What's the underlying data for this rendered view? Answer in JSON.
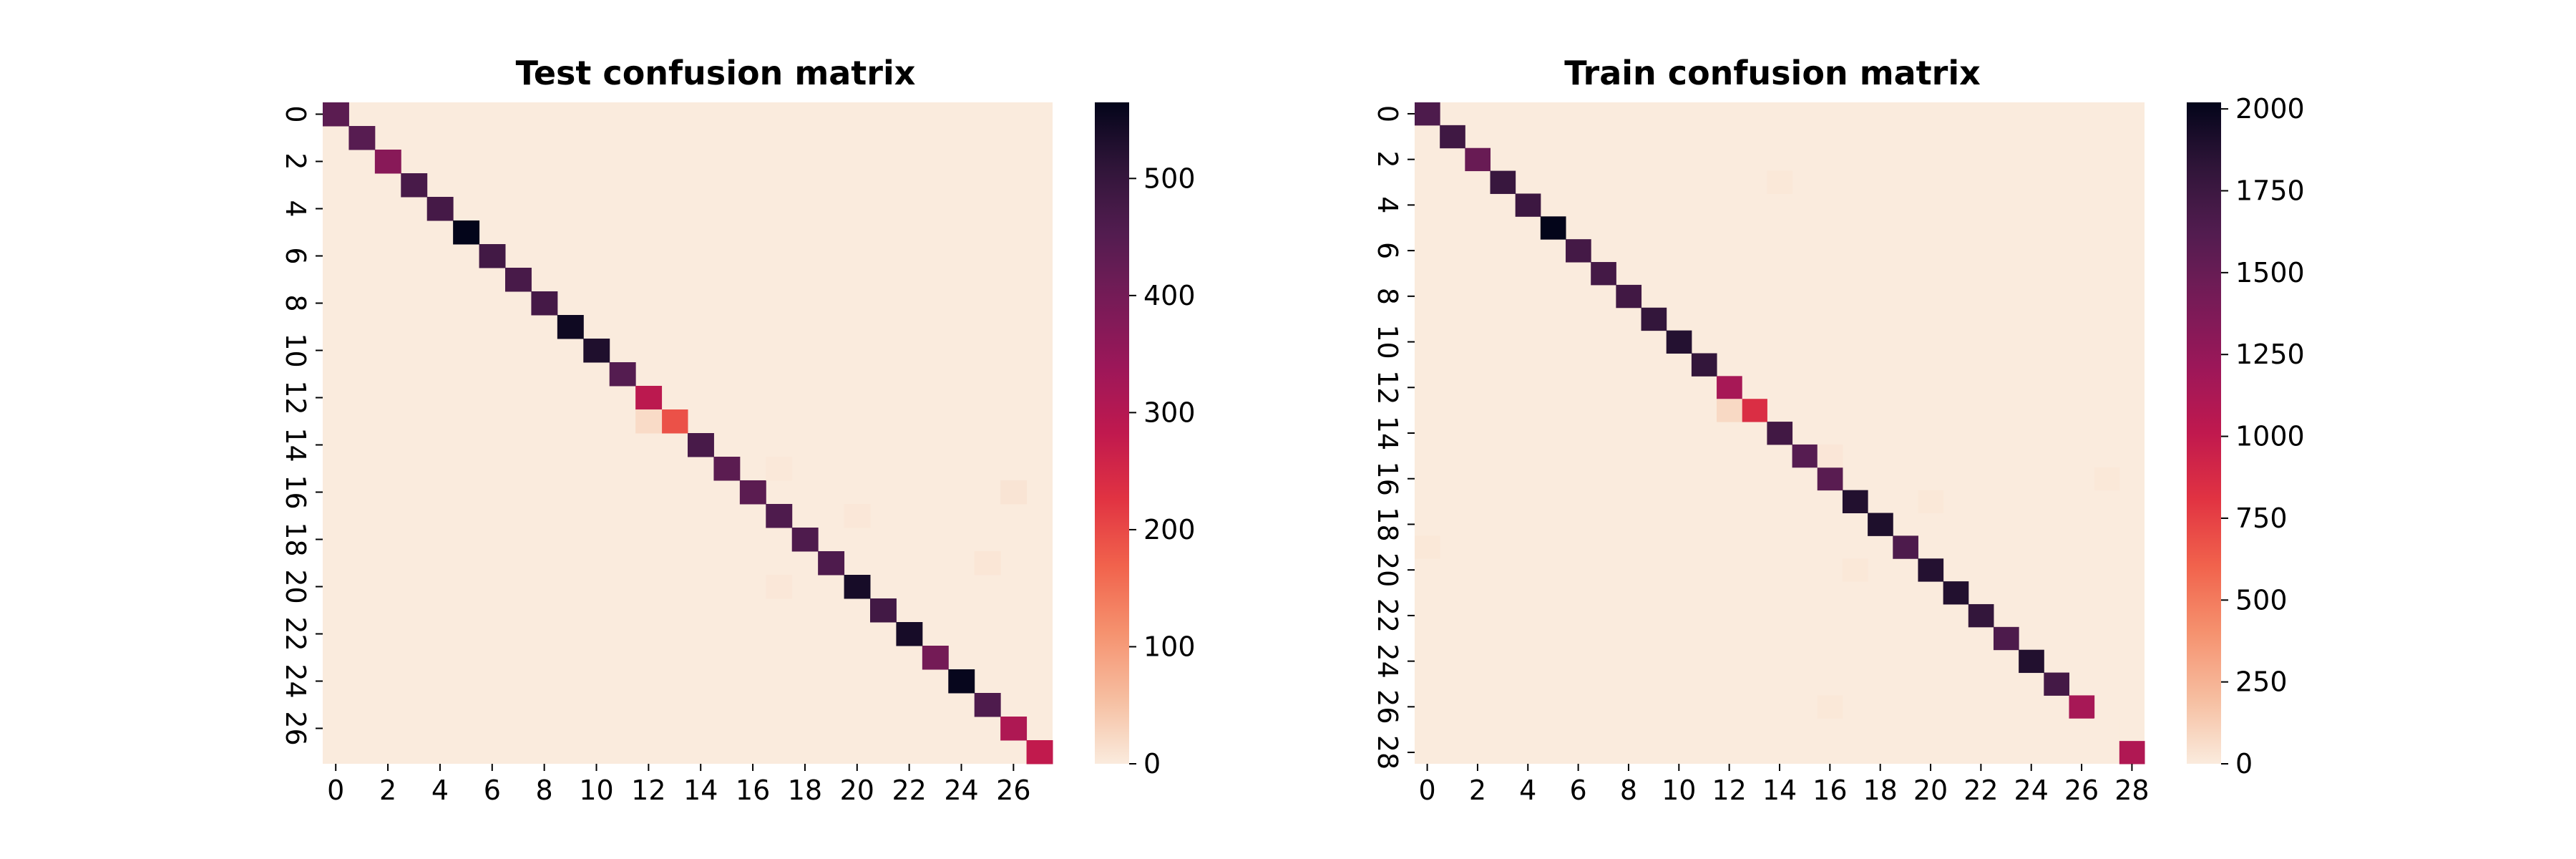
{
  "chart_data": [
    {
      "type": "heatmap",
      "title": "Test confusion matrix",
      "xlabel": "",
      "ylabel": "",
      "size": 28,
      "x_tick_labels": [
        "0",
        "2",
        "4",
        "6",
        "8",
        "10",
        "12",
        "14",
        "16",
        "18",
        "20",
        "22",
        "24",
        "26"
      ],
      "y_tick_labels": [
        "0",
        "2",
        "4",
        "6",
        "8",
        "10",
        "12",
        "14",
        "16",
        "18",
        "20",
        "22",
        "24",
        "26"
      ],
      "diagonal": [
        440,
        445,
        370,
        470,
        475,
        565,
        480,
        470,
        475,
        550,
        530,
        450,
        290,
        190,
        470,
        440,
        440,
        460,
        460,
        460,
        540,
        480,
        540,
        400,
        560,
        460,
        310,
        280
      ],
      "off_diagonal": [
        {
          "row": 13,
          "col": 12,
          "value": 20
        },
        {
          "row": 15,
          "col": 17,
          "value": 4
        },
        {
          "row": 16,
          "col": 26,
          "value": 8
        },
        {
          "row": 17,
          "col": 20,
          "value": 5
        },
        {
          "row": 19,
          "col": 25,
          "value": 6
        },
        {
          "row": 20,
          "col": 17,
          "value": 5
        }
      ],
      "colorbar": {
        "min": 0,
        "max": 565,
        "ticks": [
          0,
          100,
          200,
          300,
          400,
          500
        ]
      }
    },
    {
      "type": "heatmap",
      "title": "Train confusion matrix",
      "xlabel": "",
      "ylabel": "",
      "size": 29,
      "x_tick_labels": [
        "0",
        "2",
        "4",
        "6",
        "8",
        "10",
        "12",
        "14",
        "16",
        "18",
        "20",
        "22",
        "24",
        "26",
        "28"
      ],
      "y_tick_labels": [
        "0",
        "2",
        "4",
        "6",
        "8",
        "10",
        "12",
        "14",
        "16",
        "18",
        "20",
        "22",
        "24",
        "26",
        "28"
      ],
      "diagonal": [
        1650,
        1730,
        1500,
        1770,
        1750,
        2020,
        1700,
        1700,
        1720,
        1800,
        1870,
        1800,
        1150,
        850,
        1720,
        1600,
        1580,
        1880,
        1900,
        1650,
        1870,
        1880,
        1800,
        1650,
        1880,
        1700,
        1150,
        0,
        1100
      ],
      "off_diagonal": [
        {
          "row": 3,
          "col": 14,
          "value": 15
        },
        {
          "row": 13,
          "col": 12,
          "value": 80
        },
        {
          "row": 15,
          "col": 16,
          "value": 20
        },
        {
          "row": 16,
          "col": 27,
          "value": 15
        },
        {
          "row": 17,
          "col": 20,
          "value": 15
        },
        {
          "row": 19,
          "col": 0,
          "value": 15
        },
        {
          "row": 20,
          "col": 17,
          "value": 15
        },
        {
          "row": 26,
          "col": 16,
          "value": 15
        }
      ],
      "colorbar": {
        "min": 0,
        "max": 2020,
        "ticks": [
          0,
          250,
          500,
          750,
          1000,
          1250,
          1500,
          1750,
          2000
        ]
      }
    }
  ]
}
